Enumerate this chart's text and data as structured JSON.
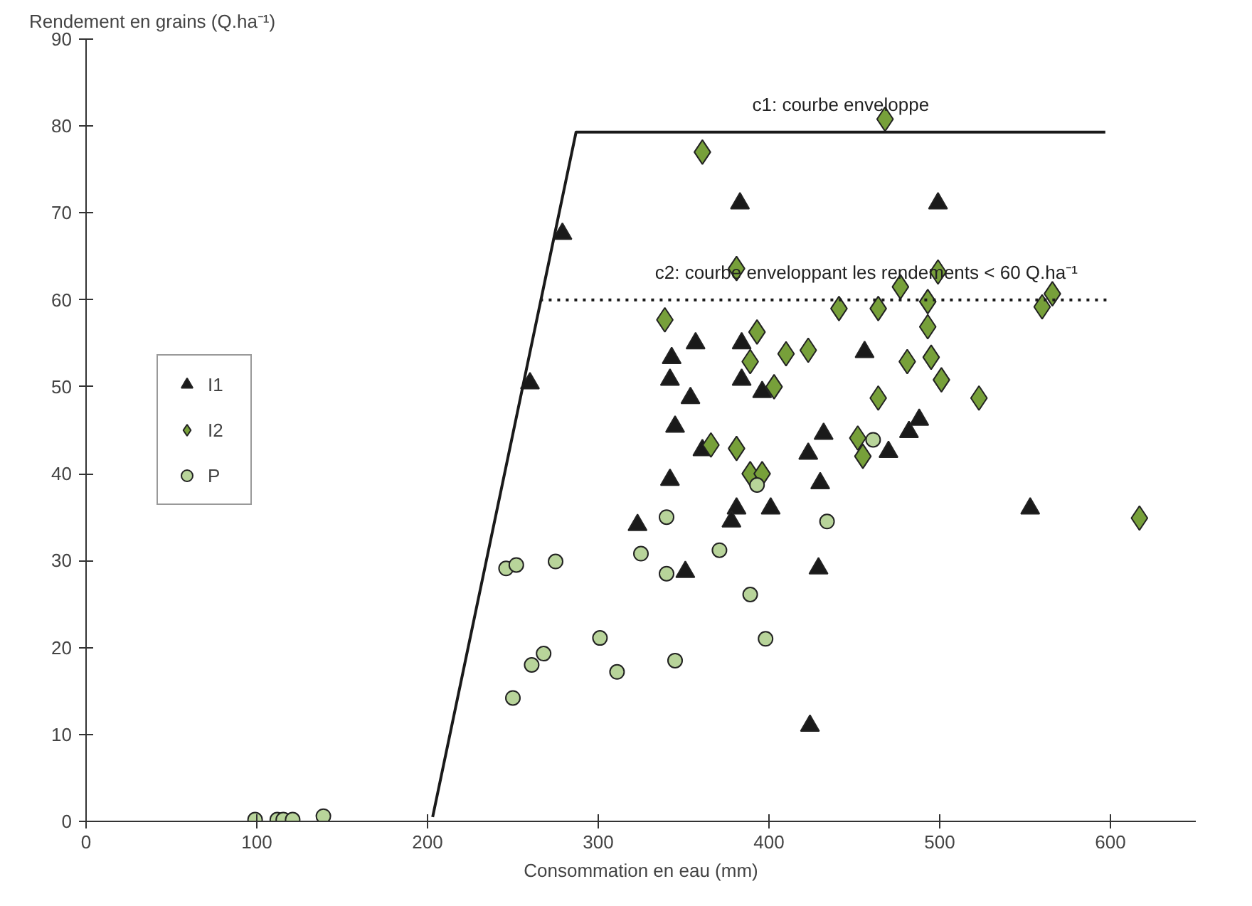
{
  "chart_data": {
    "type": "scatter",
    "xlabel": "Consommation en eau (mm)",
    "ylabel": "Rendement en grains (Q.ha⁻¹)",
    "xlim": [
      0,
      650
    ],
    "xticks": [
      0,
      100,
      200,
      300,
      400,
      500,
      600
    ],
    "ylim": [
      0,
      90
    ],
    "yticks": [
      0,
      10,
      20,
      30,
      40,
      50,
      60,
      70,
      80,
      90
    ],
    "grid": false,
    "legend": "left",
    "annotations": [
      "c1: courbe enveloppe",
      "c2: courbe enveloppant les rendements < 60 Q.ha⁻¹"
    ],
    "series": [
      {
        "name": "I1",
        "marker": "triangle",
        "color": "#1a1a1a",
        "x": [
          279,
          260,
          357,
          343,
          342,
          354,
          345,
          361,
          342,
          323,
          351,
          383,
          499,
          384,
          456,
          384,
          396,
          432,
          482,
          488,
          423,
          470,
          430,
          381,
          378,
          401,
          553,
          429,
          424
        ],
        "values": [
          67.6,
          50.4,
          55,
          53.3,
          50.8,
          48.7,
          45.4,
          42.7,
          39.3,
          34.1,
          28.7,
          71.1,
          71.1,
          55,
          54,
          50.8,
          49.4,
          44.6,
          44.8,
          46.2,
          42.3,
          42.5,
          38.9,
          36,
          34.5,
          36,
          36,
          29.1,
          11
        ]
      },
      {
        "name": "I2",
        "marker": "diamond",
        "color": "#77a03a",
        "x": [
          339,
          468,
          361,
          381,
          499,
          477,
          441,
          464,
          493,
          560,
          566,
          493,
          393,
          410,
          423,
          389,
          481,
          495,
          501,
          403,
          464,
          523,
          366,
          381,
          452,
          455,
          389,
          396,
          617
        ],
        "values": [
          57.7,
          80.8,
          77,
          63.6,
          63.2,
          61.5,
          59,
          59,
          59.8,
          59.2,
          60.7,
          56.9,
          56.3,
          53.8,
          54.2,
          52.9,
          52.9,
          53.4,
          50.8,
          50,
          48.7,
          48.7,
          43.3,
          42.9,
          44.1,
          42,
          40,
          40,
          34.9
        ]
      },
      {
        "name": "P",
        "marker": "circle",
        "color": "#b8d49a",
        "x": [
          99,
          112,
          115.5,
          121,
          139,
          246,
          252,
          275,
          325,
          340,
          340,
          250,
          261,
          268,
          301,
          311,
          345,
          398,
          461,
          393,
          434,
          371,
          389
        ],
        "values": [
          0.2,
          0.2,
          0.2,
          0.2,
          0.6,
          29.1,
          29.5,
          29.9,
          30.8,
          35,
          28.5,
          14.2,
          18,
          19.3,
          21.1,
          17.2,
          18.5,
          21,
          43.9,
          38.7,
          34.5,
          31.2,
          26.1
        ]
      },
      {
        "type": "line",
        "line_style": "solid",
        "color": "#1a1a1a",
        "x": [
          203,
          287,
          597
        ],
        "values": [
          0.5,
          79.3,
          79.3
        ]
      },
      {
        "type": "line",
        "line_style": "dotted",
        "color": "#1a1a1a",
        "x": [
          266,
          598
        ],
        "values": [
          60,
          60
        ]
      }
    ]
  }
}
